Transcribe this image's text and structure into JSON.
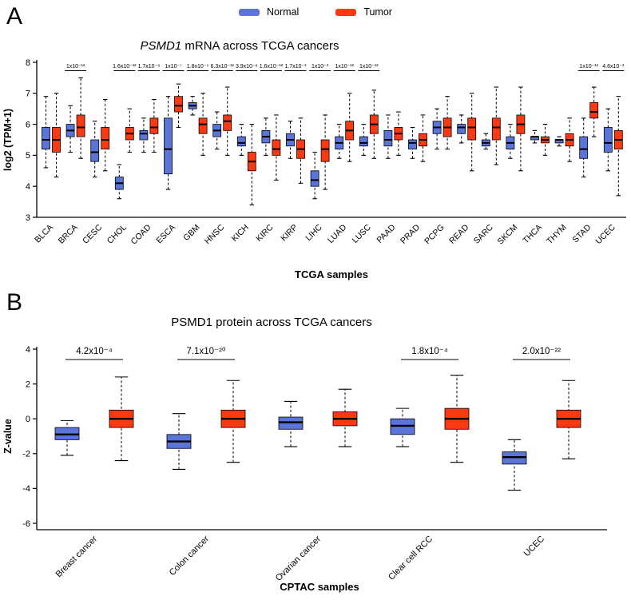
{
  "panels": [
    {
      "label": "A"
    },
    {
      "label": "B"
    }
  ],
  "legend": {
    "items": [
      {
        "label": "Normal",
        "color": "#5b74d8"
      },
      {
        "label": "Tumor",
        "color": "#fb3a13"
      }
    ]
  },
  "chart_data": [
    {
      "type": "boxplot",
      "panel": "A",
      "title": "PSMD1 mRNA across TCGA cancers",
      "title_parts": [
        {
          "text": "PSMD1",
          "italic": true
        },
        {
          "text": " mRNA across TCGA cancers",
          "italic": false
        }
      ],
      "xlabel": "TCGA samples",
      "ylabel": "log2 (TPM+1)",
      "ylim": [
        3,
        8
      ],
      "yticks": [
        3,
        4,
        5,
        6,
        7,
        8
      ],
      "legend_position": "top",
      "grid": false,
      "categories": [
        "BLCA",
        "BRCA",
        "CESC",
        "CHOL",
        "COAD",
        "ESCA",
        "GBM",
        "HNSC",
        "KICH",
        "KIRC",
        "KIRP",
        "LIHC",
        "LUAD",
        "LUSC",
        "PAAD",
        "PRAD",
        "PCPG",
        "READ",
        "SARC",
        "SKCM",
        "THCA",
        "THYM",
        "STAD",
        "UCEC"
      ],
      "pvalues": [
        null,
        "1x10⁻¹²",
        null,
        "1.6x10⁻¹²",
        "1.7x10⁻⁸",
        "1x10⁻⁷",
        "1.8x10⁻⁵",
        "6.3x10⁻¹²",
        "3.9x10⁻⁸",
        "1.6x10⁻¹²",
        "1.7x10⁻³",
        "1x10⁻³",
        "1x10⁻¹²",
        "1x10⁻¹²",
        null,
        null,
        null,
        null,
        null,
        null,
        null,
        null,
        "1x10⁻¹²",
        "4.6x10⁻³"
      ],
      "box_format": [
        "whisker_low",
        "q1",
        "median",
        "q3",
        "whisker_high"
      ],
      "series": [
        {
          "name": "Normal",
          "color": "#5b74d8",
          "boxes": [
            [
              4.6,
              5.2,
              5.5,
              5.9,
              6.9
            ],
            [
              5.1,
              5.6,
              5.8,
              6.0,
              6.6
            ],
            [
              4.3,
              4.8,
              5.1,
              5.5,
              6.1
            ],
            [
              3.6,
              3.9,
              4.1,
              4.3,
              4.7
            ],
            [
              5.1,
              5.5,
              5.7,
              5.8,
              6.2
            ],
            [
              3.9,
              4.4,
              5.2,
              6.2,
              6.9
            ],
            [
              6.3,
              6.5,
              6.6,
              6.7,
              6.9
            ],
            [
              5.2,
              5.6,
              5.8,
              6.0,
              6.4
            ],
            [
              5.0,
              5.3,
              5.4,
              5.6,
              6.0
            ],
            [
              5.0,
              5.4,
              5.6,
              5.8,
              6.2
            ],
            [
              4.9,
              5.3,
              5.5,
              5.7,
              6.1
            ],
            [
              3.6,
              4.0,
              4.2,
              4.5,
              5.1
            ],
            [
              4.9,
              5.2,
              5.4,
              5.6,
              6.0
            ],
            [
              5.0,
              5.3,
              5.4,
              5.6,
              6.0
            ],
            [
              4.9,
              5.3,
              5.5,
              5.8,
              6.3
            ],
            [
              4.9,
              5.2,
              5.4,
              5.5,
              5.9
            ],
            [
              5.2,
              5.7,
              5.9,
              6.1,
              6.5
            ],
            [
              5.4,
              5.7,
              5.9,
              6.0,
              6.3
            ],
            [
              5.2,
              5.3,
              5.4,
              5.5,
              5.7
            ],
            [
              4.9,
              5.2,
              5.4,
              5.6,
              6.0
            ],
            [
              5.4,
              5.5,
              5.6,
              5.6,
              5.8
            ],
            [
              5.3,
              5.4,
              5.5,
              5.5,
              5.6
            ],
            [
              4.3,
              4.9,
              5.2,
              5.6,
              6.2
            ],
            [
              4.5,
              5.1,
              5.4,
              5.9,
              6.5
            ]
          ]
        },
        {
          "name": "Tumor",
          "color": "#fb3a13",
          "boxes": [
            [
              4.3,
              5.1,
              5.5,
              5.9,
              7.0
            ],
            [
              4.9,
              5.6,
              5.9,
              6.3,
              7.5
            ],
            [
              4.5,
              5.2,
              5.5,
              5.9,
              6.8
            ],
            [
              5.1,
              5.5,
              5.7,
              5.9,
              6.5
            ],
            [
              5.1,
              5.7,
              5.9,
              6.2,
              6.8
            ],
            [
              5.9,
              6.4,
              6.6,
              6.9,
              7.3
            ],
            [
              5.0,
              5.7,
              6.0,
              6.2,
              7.0
            ],
            [
              5.0,
              5.8,
              6.1,
              6.3,
              7.2
            ],
            [
              3.4,
              4.5,
              4.8,
              5.1,
              6.0
            ],
            [
              4.2,
              5.0,
              5.2,
              5.5,
              6.3
            ],
            [
              4.1,
              4.9,
              5.2,
              5.5,
              6.2
            ],
            [
              3.9,
              4.8,
              5.2,
              5.5,
              6.3
            ],
            [
              4.8,
              5.5,
              5.8,
              6.1,
              7.0
            ],
            [
              4.9,
              5.7,
              6.0,
              6.3,
              7.1
            ],
            [
              5.0,
              5.5,
              5.7,
              5.9,
              6.4
            ],
            [
              4.8,
              5.3,
              5.5,
              5.7,
              6.3
            ],
            [
              5.2,
              5.6,
              5.9,
              6.2,
              6.9
            ],
            [
              4.5,
              5.5,
              5.9,
              6.2,
              7.0
            ],
            [
              4.7,
              5.5,
              5.9,
              6.2,
              7.2
            ],
            [
              4.5,
              5.7,
              6.0,
              6.3,
              7.2
            ],
            [
              5.0,
              5.4,
              5.5,
              5.6,
              6.0
            ],
            [
              4.8,
              5.3,
              5.5,
              5.7,
              6.2
            ],
            [
              5.6,
              6.2,
              6.4,
              6.7,
              7.2
            ],
            [
              3.7,
              5.2,
              5.5,
              5.8,
              6.9
            ]
          ]
        }
      ]
    },
    {
      "type": "boxplot",
      "panel": "B",
      "title": "PSMD1 protein across TCGA cancers",
      "title_parts": [
        {
          "text": "PSMD1 protein across TCGA cancers",
          "italic": false
        }
      ],
      "xlabel": "CPTAC samples",
      "ylabel": "Z-value",
      "ylim": [
        -6,
        4
      ],
      "yticks": [
        -6,
        -4,
        -2,
        0,
        2,
        4
      ],
      "grid": false,
      "categories": [
        "Breast cancer",
        "Colon cancer",
        "Ovarian cancer",
        "Clear cell RCC",
        "UCEC"
      ],
      "pvalues": [
        "4.2x10⁻⁴",
        "7.1x10⁻²⁰",
        null,
        "1.8x10⁻⁴",
        "2.0x10⁻²²"
      ],
      "box_format": [
        "whisker_low",
        "q1",
        "median",
        "q3",
        "whisker_high"
      ],
      "series": [
        {
          "name": "Normal",
          "color": "#5b74d8",
          "boxes": [
            [
              -2.1,
              -1.2,
              -0.9,
              -0.5,
              -0.1
            ],
            [
              -2.9,
              -1.7,
              -1.3,
              -0.9,
              0.3
            ],
            [
              -1.6,
              -0.6,
              -0.2,
              0.1,
              1.0
            ],
            [
              -1.6,
              -0.9,
              -0.4,
              0.0,
              0.6
            ],
            [
              -4.1,
              -2.6,
              -2.2,
              -1.9,
              -1.2
            ]
          ]
        },
        {
          "name": "Tumor",
          "color": "#fb3a13",
          "boxes": [
            [
              -2.4,
              -0.5,
              0.0,
              0.5,
              2.4
            ],
            [
              -2.5,
              -0.5,
              0.0,
              0.5,
              2.2
            ],
            [
              -1.6,
              -0.4,
              0.0,
              0.4,
              1.7
            ],
            [
              -2.5,
              -0.6,
              0.0,
              0.6,
              2.5
            ],
            [
              -2.3,
              -0.5,
              0.0,
              0.5,
              2.2
            ]
          ]
        }
      ]
    }
  ]
}
